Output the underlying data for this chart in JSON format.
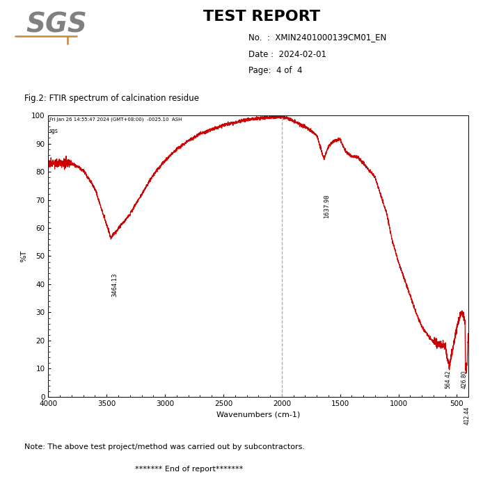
{
  "title": "TEST REPORT",
  "no_label": "No.  :  XMIN2401000139CM01_EN",
  "date_label": "Date :  2024-02-01",
  "page_label": "Page:  4 of  4",
  "fig_title": "Fig.2: FTIR spectrum of calcination residue",
  "spectrum_header": "Fri Jan 26 14:55:47 2024 (GMT+08:00)  -0025.10  ASH",
  "spectrum_header2": "sgs",
  "xlabel": "Wavenumbers (cm-1)",
  "ylabel": "%T",
  "xmin": 4000,
  "xmax": 400,
  "ymin": 0,
  "ymax": 100,
  "yticks": [
    0,
    10,
    20,
    30,
    40,
    50,
    60,
    70,
    80,
    90,
    100
  ],
  "xticks": [
    4000,
    3500,
    3000,
    2500,
    2000,
    1500,
    1000,
    500
  ],
  "dashed_line_x": 2000,
  "note_line1": "Note: The above test project/method was carried out by subcontractors.",
  "note_line2": "******* End of report*******",
  "line_color": "#cc0000",
  "background_color": "#ffffff",
  "sgs_color": "#808080",
  "orange_color": "#c8873a"
}
